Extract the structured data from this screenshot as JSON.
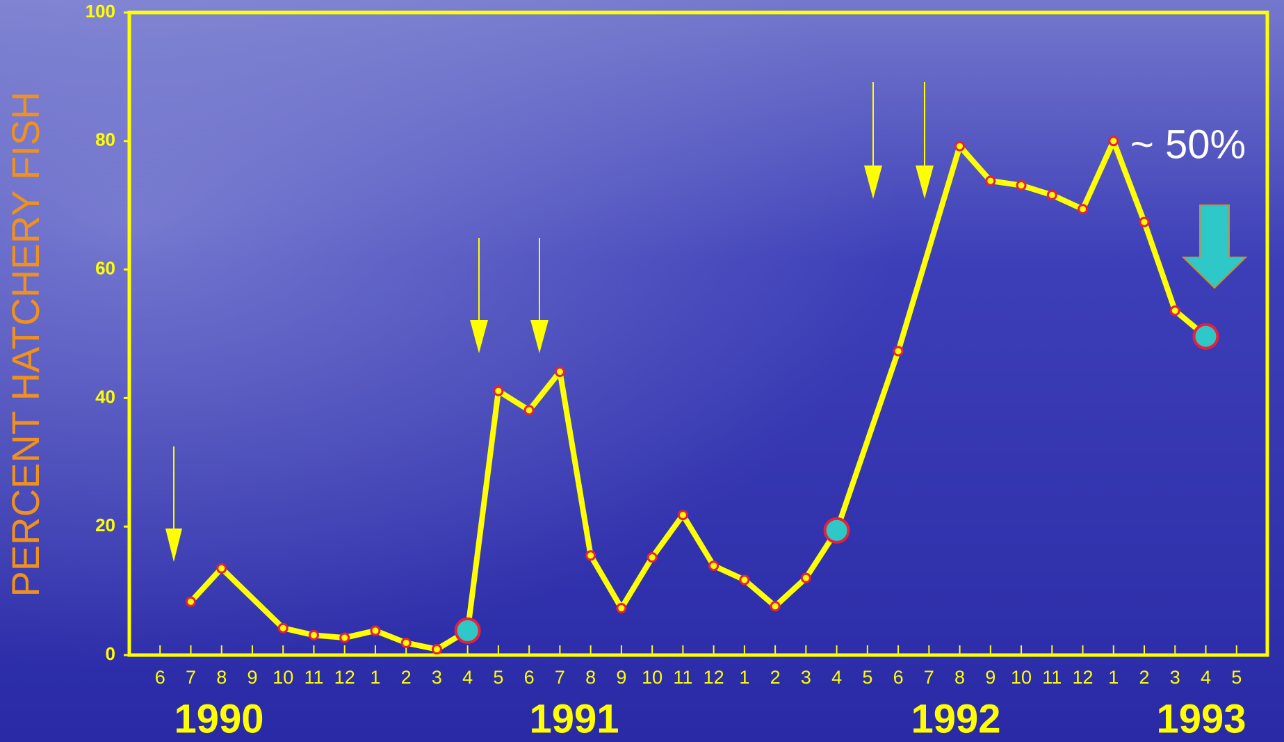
{
  "chart_data": {
    "type": "line",
    "ylabel": "PERCENT HATCHERY FISH",
    "annotation": "~ 50%",
    "year_labels": [
      "1990",
      "1991",
      "1992",
      "1993"
    ],
    "x": [
      "1990-07",
      "1990-08",
      "1990-10",
      "1990-11",
      "1990-12",
      "1991-01",
      "1991-02",
      "1991-03",
      "1991-04",
      "1991-05",
      "1991-06",
      "1991-07",
      "1991-08",
      "1991-09",
      "1991-10",
      "1991-11",
      "1991-12",
      "1992-01",
      "1992-02",
      "1992-03",
      "1992-04",
      "1992-06",
      "1992-08",
      "1992-09",
      "1992-10",
      "1992-11",
      "1992-12",
      "1993-01",
      "1993-02",
      "1993-03",
      "1993-04"
    ],
    "values": [
      8.3,
      13.5,
      4.2,
      3.1,
      2.7,
      3.8,
      1.9,
      0.9,
      3.8,
      41.1,
      38.1,
      44.1,
      15.5,
      7.3,
      15.2,
      21.8,
      13.9,
      11.7,
      7.6,
      12,
      19.4,
      47.3,
      79.2,
      73.8,
      73.1,
      71.6,
      69.4,
      80,
      67.4,
      53.6,
      49.6
    ],
    "color": "#ffff00",
    "marker_edge_color": "#e8203a",
    "highlight_color": "#2ec8c8",
    "highlighted_x": [
      "1991-04",
      "1992-04",
      "1993-04"
    ],
    "axis_color": "#ffff00",
    "ylabel_color": "#f0901e",
    "xlim": [
      "1990-05",
      "1993-06"
    ],
    "xticks": [
      {
        "value": "1990-06",
        "label": "6"
      },
      {
        "value": "1990-07",
        "label": "7"
      },
      {
        "value": "1990-08",
        "label": "8"
      },
      {
        "value": "1990-09",
        "label": "9"
      },
      {
        "value": "1990-10",
        "label": "10"
      },
      {
        "value": "1990-11",
        "label": "11"
      },
      {
        "value": "1990-12",
        "label": "12"
      },
      {
        "value": "1991-01",
        "label": "1"
      },
      {
        "value": "1991-02",
        "label": "2"
      },
      {
        "value": "1991-03",
        "label": "3"
      },
      {
        "value": "1991-04",
        "label": "4"
      },
      {
        "value": "1991-05",
        "label": "5"
      },
      {
        "value": "1991-06",
        "label": "6"
      },
      {
        "value": "1991-07",
        "label": "7"
      },
      {
        "value": "1991-08",
        "label": "8"
      },
      {
        "value": "1991-09",
        "label": "9"
      },
      {
        "value": "1991-10",
        "label": "10"
      },
      {
        "value": "1991-11",
        "label": "11"
      },
      {
        "value": "1991-12",
        "label": "12"
      },
      {
        "value": "1992-01",
        "label": "1"
      },
      {
        "value": "1992-02",
        "label": "2"
      },
      {
        "value": "1992-03",
        "label": "3"
      },
      {
        "value": "1992-04",
        "label": "4"
      },
      {
        "value": "1992-05",
        "label": "5"
      },
      {
        "value": "1992-06",
        "label": "6"
      },
      {
        "value": "1992-07",
        "label": "7"
      },
      {
        "value": "1992-08",
        "label": "8"
      },
      {
        "value": "1992-09",
        "label": "9"
      },
      {
        "value": "1992-10",
        "label": "10"
      },
      {
        "value": "1992-11",
        "label": "11"
      },
      {
        "value": "1992-12",
        "label": "12"
      },
      {
        "value": "1993-01",
        "label": "1"
      },
      {
        "value": "1993-02",
        "label": "2"
      },
      {
        "value": "1993-03",
        "label": "3"
      },
      {
        "value": "1993-04",
        "label": "4"
      },
      {
        "value": "1993-05",
        "label": "5"
      }
    ],
    "ylim": [
      0,
      100
    ],
    "yticks": [
      0,
      20,
      40,
      60,
      80,
      100
    ]
  }
}
